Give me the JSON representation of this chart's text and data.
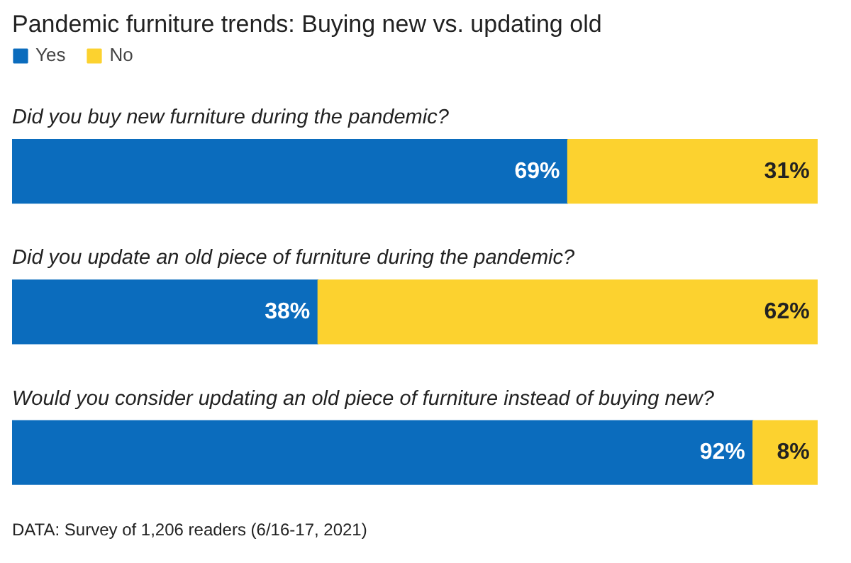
{
  "chart_data": {
    "type": "bar",
    "orientation": "horizontal",
    "stacked": true,
    "title": "Pandemic furniture trends: Buying new vs. updating old",
    "categories": [
      "Did you buy new furniture during the pandemic?",
      "Did you update an old piece of furniture during the pandemic?",
      "Would you consider updating an old piece of furniture instead of buying new?"
    ],
    "series": [
      {
        "name": "Yes",
        "color": "#0b6cbd",
        "values": [
          69,
          38,
          92
        ],
        "value_labels": [
          "69%",
          "38%",
          "92%"
        ]
      },
      {
        "name": "No",
        "color": "#fcd22f",
        "values": [
          31,
          62,
          8
        ],
        "value_labels": [
          "31%",
          "62%",
          "8%"
        ]
      }
    ],
    "legend": "top left",
    "grid": false,
    "tick_labels": false,
    "annotations": [
      "DATA: Survey of 1,206 readers (6/16-17, 2021)"
    ]
  }
}
